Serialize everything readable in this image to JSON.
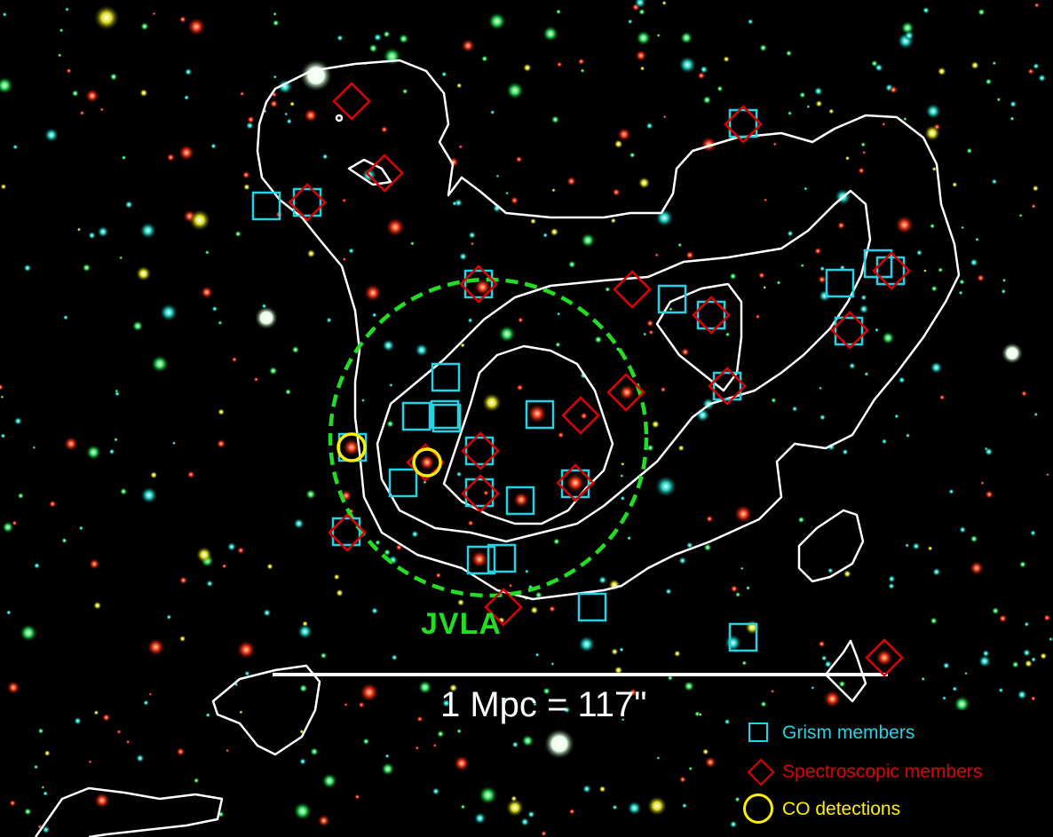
{
  "colors": {
    "background": "#000000",
    "contour": "#ffffff",
    "grism": "#22d3e6",
    "spectroscopic": "#e00000",
    "co": "#ffee00",
    "jvla": "#22dd22"
  },
  "jvla_label": "JVLA",
  "scale_bar_label": "1 Mpc = 117\"",
  "legend": {
    "grism_label": "Grism members",
    "spectroscopic_label": "Spectroscopic members",
    "co_label": "CO detections"
  },
  "icons": {
    "grism_marker": "square-icon",
    "spectroscopic_marker": "diamond-icon",
    "co_marker": "circle-icon"
  }
}
